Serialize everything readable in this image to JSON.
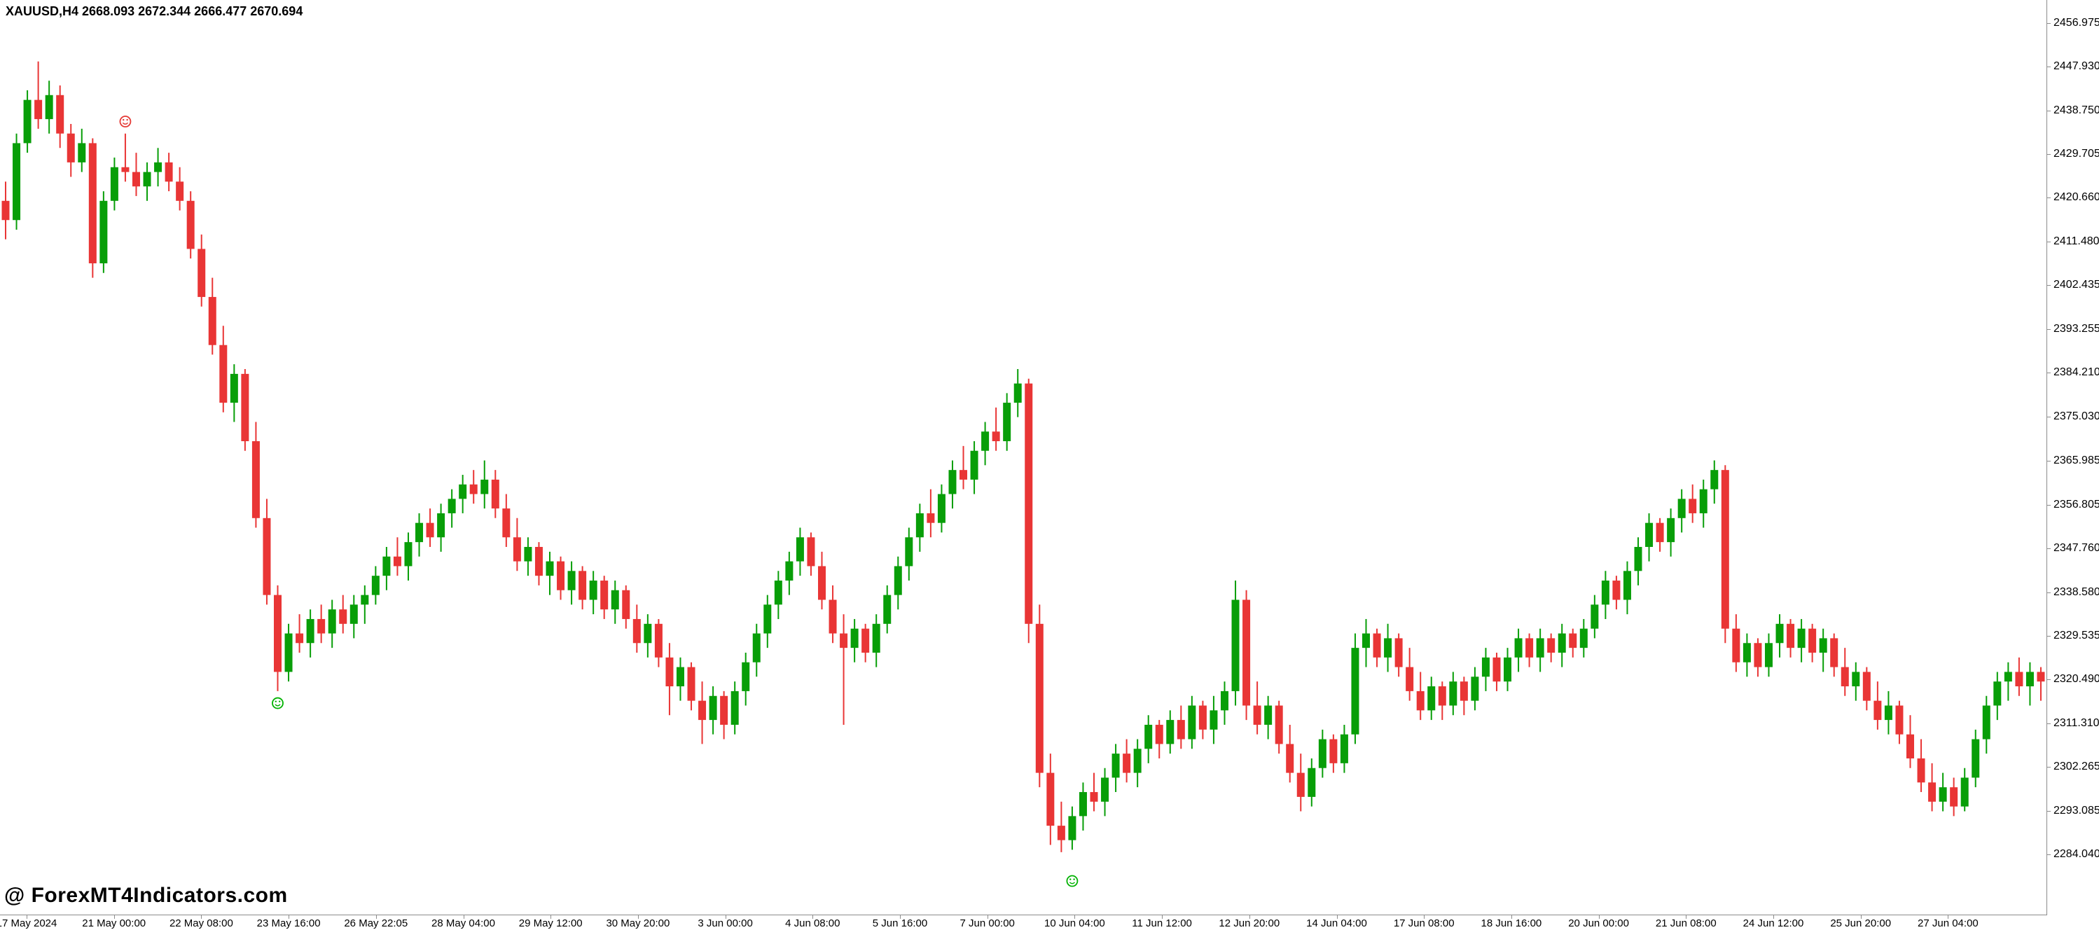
{
  "header": {
    "title": "XAUUSD,H4  2668.093 2672.344 2666.477 2670.694"
  },
  "watermark": {
    "text": "@ ForexMT4Indicators.com"
  },
  "colors": {
    "background": "#ffffff",
    "bull": "#089e08",
    "bear": "#e93535",
    "axis_text": "#000000",
    "axis_line": "#8c8c8c",
    "marker_red": "#e53935",
    "marker_green": "#00b200"
  },
  "chart_data": {
    "type": "candlestick",
    "symbol": "XAUUSD",
    "timeframe": "H4",
    "ohlc_readout": {
      "open": "2668.093",
      "high": "2672.344",
      "low": "2666.477",
      "close": "2670.694"
    },
    "ylim": [
      2284.04,
      2456.975
    ],
    "grid": "off",
    "y_tick_labels": [
      "2456.975",
      "2447.930",
      "2438.750",
      "2429.705",
      "2420.660",
      "2411.480",
      "2402.435",
      "2393.255",
      "2384.210",
      "2375.030",
      "2365.985",
      "2356.805",
      "2347.760",
      "2338.580",
      "2329.535",
      "2320.490",
      "2311.310",
      "2302.265",
      "2293.085",
      "2284.040"
    ],
    "x_tick_labels": [
      "17 May 2024",
      "21 May 00:00",
      "22 May 08:00",
      "23 May 16:00",
      "26 May 22:05",
      "28 May 04:00",
      "29 May 12:00",
      "30 May 20:00",
      "3 Jun 00:00",
      "4 Jun 08:00",
      "5 Jun 16:00",
      "7 Jun 00:00",
      "10 Jun 04:00",
      "11 Jun 12:00",
      "12 Jun 20:00",
      "14 Jun 04:00",
      "17 Jun 08:00",
      "18 Jun 16:00",
      "20 Jun 00:00",
      "21 Jun 08:00",
      "24 Jun 12:00",
      "25 Jun 20:00",
      "27 Jun 04:00"
    ],
    "candles": [
      [
        2420,
        2424,
        2412,
        2416
      ],
      [
        2416,
        2434,
        2414,
        2432
      ],
      [
        2432,
        2443,
        2430,
        2441
      ],
      [
        2441,
        2449,
        2435,
        2437
      ],
      [
        2437,
        2445,
        2434,
        2442
      ],
      [
        2442,
        2444,
        2431,
        2434
      ],
      [
        2434,
        2436,
        2425,
        2428
      ],
      [
        2428,
        2435,
        2426,
        2432
      ],
      [
        2432,
        2433,
        2404,
        2407
      ],
      [
        2407,
        2422,
        2405,
        2420
      ],
      [
        2420,
        2429,
        2418,
        2427
      ],
      [
        2427,
        2434,
        2424,
        2426
      ],
      [
        2426,
        2430,
        2421,
        2423
      ],
      [
        2423,
        2428,
        2420,
        2426
      ],
      [
        2426,
        2431,
        2423,
        2428
      ],
      [
        2428,
        2430,
        2422,
        2424
      ],
      [
        2424,
        2427,
        2418,
        2420
      ],
      [
        2420,
        2422,
        2408,
        2410
      ],
      [
        2410,
        2413,
        2398,
        2400
      ],
      [
        2400,
        2404,
        2388,
        2390
      ],
      [
        2390,
        2394,
        2376,
        2378
      ],
      [
        2378,
        2386,
        2374,
        2384
      ],
      [
        2384,
        2385,
        2368,
        2370
      ],
      [
        2370,
        2374,
        2352,
        2354
      ],
      [
        2354,
        2358,
        2336,
        2338
      ],
      [
        2338,
        2340,
        2318,
        2322
      ],
      [
        2322,
        2332,
        2320,
        2330
      ],
      [
        2330,
        2334,
        2326,
        2328
      ],
      [
        2328,
        2335,
        2325,
        2333
      ],
      [
        2333,
        2336,
        2328,
        2330
      ],
      [
        2330,
        2337,
        2327,
        2335
      ],
      [
        2335,
        2338,
        2330,
        2332
      ],
      [
        2332,
        2338,
        2329,
        2336
      ],
      [
        2336,
        2340,
        2332,
        2338
      ],
      [
        2338,
        2344,
        2336,
        2342
      ],
      [
        2342,
        2348,
        2339,
        2346
      ],
      [
        2346,
        2350,
        2342,
        2344
      ],
      [
        2344,
        2351,
        2341,
        2349
      ],
      [
        2349,
        2355,
        2346,
        2353
      ],
      [
        2353,
        2356,
        2348,
        2350
      ],
      [
        2350,
        2357,
        2347,
        2355
      ],
      [
        2355,
        2360,
        2352,
        2358
      ],
      [
        2358,
        2363,
        2355,
        2361
      ],
      [
        2361,
        2364,
        2357,
        2359
      ],
      [
        2359,
        2366,
        2356,
        2362
      ],
      [
        2362,
        2364,
        2354,
        2356
      ],
      [
        2356,
        2359,
        2348,
        2350
      ],
      [
        2350,
        2354,
        2343,
        2345
      ],
      [
        2345,
        2350,
        2342,
        2348
      ],
      [
        2348,
        2349,
        2340,
        2342
      ],
      [
        2342,
        2347,
        2338,
        2345
      ],
      [
        2345,
        2346,
        2337,
        2339
      ],
      [
        2339,
        2345,
        2336,
        2343
      ],
      [
        2343,
        2344,
        2335,
        2337
      ],
      [
        2337,
        2343,
        2334,
        2341
      ],
      [
        2341,
        2342,
        2333,
        2335
      ],
      [
        2335,
        2341,
        2332,
        2339
      ],
      [
        2339,
        2340,
        2331,
        2333
      ],
      [
        2333,
        2336,
        2326,
        2328
      ],
      [
        2328,
        2334,
        2325,
        2332
      ],
      [
        2332,
        2333,
        2323,
        2325
      ],
      [
        2325,
        2328,
        2313,
        2319
      ],
      [
        2319,
        2325,
        2316,
        2323
      ],
      [
        2323,
        2324,
        2314,
        2316
      ],
      [
        2316,
        2320,
        2307,
        2312
      ],
      [
        2312,
        2319,
        2309,
        2317
      ],
      [
        2317,
        2318,
        2308,
        2311
      ],
      [
        2311,
        2320,
        2309,
        2318
      ],
      [
        2318,
        2326,
        2315,
        2324
      ],
      [
        2324,
        2332,
        2321,
        2330
      ],
      [
        2330,
        2338,
        2327,
        2336
      ],
      [
        2336,
        2343,
        2333,
        2341
      ],
      [
        2341,
        2347,
        2338,
        2345
      ],
      [
        2345,
        2352,
        2342,
        2350
      ],
      [
        2350,
        2351,
        2342,
        2344
      ],
      [
        2344,
        2347,
        2335,
        2337
      ],
      [
        2337,
        2340,
        2328,
        2330
      ],
      [
        2330,
        2334,
        2311,
        2327
      ],
      [
        2327,
        2333,
        2324,
        2331
      ],
      [
        2331,
        2332,
        2324,
        2326
      ],
      [
        2326,
        2334,
        2323,
        2332
      ],
      [
        2332,
        2340,
        2330,
        2338
      ],
      [
        2338,
        2346,
        2335,
        2344
      ],
      [
        2344,
        2352,
        2341,
        2350
      ],
      [
        2350,
        2357,
        2347,
        2355
      ],
      [
        2355,
        2360,
        2350,
        2353
      ],
      [
        2353,
        2361,
        2351,
        2359
      ],
      [
        2359,
        2366,
        2356,
        2364
      ],
      [
        2364,
        2369,
        2360,
        2362
      ],
      [
        2362,
        2370,
        2359,
        2368
      ],
      [
        2368,
        2374,
        2365,
        2372
      ],
      [
        2372,
        2377,
        2368,
        2370
      ],
      [
        2370,
        2380,
        2368,
        2378
      ],
      [
        2378,
        2385,
        2375,
        2382
      ],
      [
        2382,
        2383,
        2328,
        2332
      ],
      [
        2332,
        2336,
        2298,
        2301
      ],
      [
        2301,
        2305,
        2286,
        2290
      ],
      [
        2290,
        2295,
        2284.5,
        2287
      ],
      [
        2287,
        2294,
        2285,
        2292
      ],
      [
        2292,
        2299,
        2289,
        2297
      ],
      [
        2297,
        2301,
        2293,
        2295
      ],
      [
        2295,
        2302,
        2292,
        2300
      ],
      [
        2300,
        2307,
        2297,
        2305
      ],
      [
        2305,
        2308,
        2299,
        2301
      ],
      [
        2301,
        2308,
        2298,
        2306
      ],
      [
        2306,
        2313,
        2303,
        2311
      ],
      [
        2311,
        2312,
        2304,
        2307
      ],
      [
        2307,
        2314,
        2305,
        2312
      ],
      [
        2312,
        2315,
        2306,
        2308
      ],
      [
        2308,
        2317,
        2306,
        2315
      ],
      [
        2315,
        2316,
        2308,
        2310
      ],
      [
        2310,
        2317,
        2307,
        2314
      ],
      [
        2314,
        2320,
        2311,
        2318
      ],
      [
        2318,
        2341,
        2315,
        2337
      ],
      [
        2337,
        2339,
        2312,
        2315
      ],
      [
        2315,
        2320,
        2309,
        2311
      ],
      [
        2311,
        2317,
        2308,
        2315
      ],
      [
        2315,
        2316,
        2305,
        2307
      ],
      [
        2307,
        2311,
        2299,
        2301
      ],
      [
        2301,
        2305,
        2293,
        2296
      ],
      [
        2296,
        2304,
        2294,
        2302
      ],
      [
        2302,
        2310,
        2300,
        2308
      ],
      [
        2308,
        2309,
        2301,
        2303
      ],
      [
        2303,
        2311,
        2301,
        2309
      ],
      [
        2309,
        2330,
        2307,
        2327
      ],
      [
        2327,
        2333,
        2323,
        2330
      ],
      [
        2330,
        2331,
        2323,
        2325
      ],
      [
        2325,
        2332,
        2322,
        2329
      ],
      [
        2329,
        2330,
        2321,
        2323
      ],
      [
        2323,
        2327,
        2316,
        2318
      ],
      [
        2318,
        2322,
        2312,
        2314
      ],
      [
        2314,
        2321,
        2312,
        2319
      ],
      [
        2319,
        2320,
        2312,
        2315
      ],
      [
        2315,
        2322,
        2313,
        2320
      ],
      [
        2320,
        2321,
        2313,
        2316
      ],
      [
        2316,
        2323,
        2314,
        2321
      ],
      [
        2321,
        2327,
        2318,
        2325
      ],
      [
        2325,
        2326,
        2318,
        2320
      ],
      [
        2320,
        2327,
        2318,
        2325
      ],
      [
        2325,
        2331,
        2322,
        2329
      ],
      [
        2329,
        2330,
        2323,
        2325
      ],
      [
        2325,
        2331,
        2322,
        2329
      ],
      [
        2329,
        2330,
        2324,
        2326
      ],
      [
        2326,
        2332,
        2323,
        2330
      ],
      [
        2330,
        2331,
        2325,
        2327
      ],
      [
        2327,
        2333,
        2325,
        2331
      ],
      [
        2331,
        2338,
        2329,
        2336
      ],
      [
        2336,
        2343,
        2333,
        2341
      ],
      [
        2341,
        2342,
        2335,
        2337
      ],
      [
        2337,
        2345,
        2334,
        2343
      ],
      [
        2343,
        2350,
        2340,
        2348
      ],
      [
        2348,
        2355,
        2345,
        2353
      ],
      [
        2353,
        2354,
        2347,
        2349
      ],
      [
        2349,
        2356,
        2346,
        2354
      ],
      [
        2354,
        2360,
        2351,
        2358
      ],
      [
        2358,
        2361,
        2353,
        2355
      ],
      [
        2355,
        2362,
        2352,
        2360
      ],
      [
        2360,
        2366,
        2357,
        2364
      ],
      [
        2364,
        2365,
        2328,
        2331
      ],
      [
        2331,
        2334,
        2322,
        2324
      ],
      [
        2324,
        2330,
        2321,
        2328
      ],
      [
        2328,
        2329,
        2321,
        2323
      ],
      [
        2323,
        2330,
        2321,
        2328
      ],
      [
        2328,
        2334,
        2325,
        2332
      ],
      [
        2332,
        2333,
        2325,
        2327
      ],
      [
        2327,
        2333,
        2324,
        2331
      ],
      [
        2331,
        2332,
        2324,
        2326
      ],
      [
        2326,
        2331,
        2322,
        2329
      ],
      [
        2329,
        2330,
        2321,
        2323
      ],
      [
        2323,
        2327,
        2317,
        2319
      ],
      [
        2319,
        2324,
        2316,
        2322
      ],
      [
        2322,
        2323,
        2314,
        2316
      ],
      [
        2316,
        2320,
        2310,
        2312
      ],
      [
        2312,
        2318,
        2309,
        2315
      ],
      [
        2315,
        2316,
        2307,
        2309
      ],
      [
        2309,
        2313,
        2302,
        2304
      ],
      [
        2304,
        2308,
        2297,
        2299
      ],
      [
        2299,
        2303,
        2293,
        2295
      ],
      [
        2295,
        2301,
        2293,
        2298
      ],
      [
        2298,
        2300,
        2292,
        2294
      ],
      [
        2294,
        2302,
        2293,
        2300
      ],
      [
        2300,
        2310,
        2298,
        2308
      ],
      [
        2308,
        2317,
        2305,
        2315
      ],
      [
        2315,
        2322,
        2312,
        2320
      ],
      [
        2320,
        2324,
        2316,
        2322
      ],
      [
        2322,
        2325,
        2317,
        2319
      ],
      [
        2319,
        2324,
        2315,
        2322
      ],
      [
        2322,
        2323,
        2316,
        2320
      ]
    ],
    "markers": [
      {
        "index": 11,
        "price": 2436.5,
        "color": "#e53935",
        "shape": "smiley",
        "name": "smiley-red-icon"
      },
      {
        "index": 25,
        "price": 2315.5,
        "color": "#00b200",
        "shape": "smiley",
        "name": "smiley-green-icon"
      },
      {
        "index": 98,
        "price": 2278.5,
        "color": "#00b200",
        "shape": "smiley",
        "name": "smiley-green-icon"
      }
    ]
  }
}
